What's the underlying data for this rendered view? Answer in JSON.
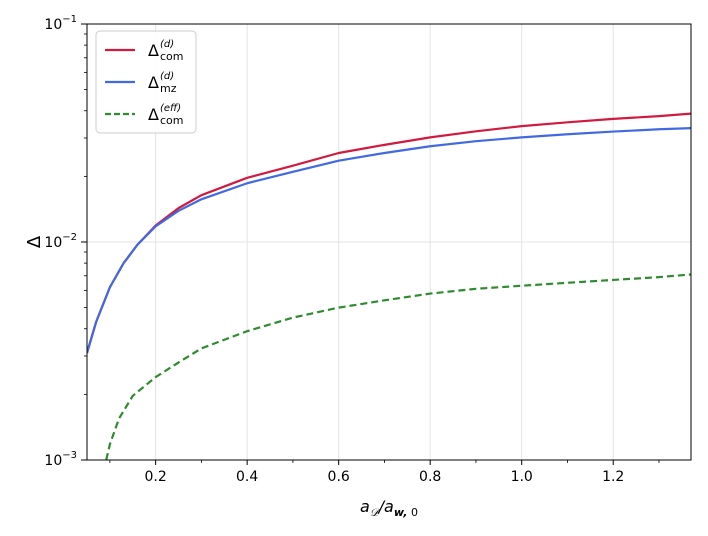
{
  "chart_data": {
    "type": "line",
    "xlabel": "a_D/a_w,0",
    "ylabel": "Δ",
    "xlim": [
      0.05,
      1.37
    ],
    "ylim": [
      0.001,
      0.1
    ],
    "yscale": "log",
    "grid": "vertical-x",
    "legend_position": "top-left",
    "x_ticks": [
      0.2,
      0.4,
      0.6,
      0.8,
      1.0,
      1.2
    ],
    "x_tick_labels": [
      "0.2",
      "0.4",
      "0.6",
      "0.8",
      "1.0",
      "1.2"
    ],
    "y_ticks": [
      0.001,
      0.01,
      0.1
    ],
    "y_tick_labels": [
      {
        "base": "10",
        "exp": "−3"
      },
      {
        "base": "10",
        "exp": "−2"
      },
      {
        "base": "10",
        "exp": "−1"
      }
    ],
    "series": [
      {
        "name": "Δ_com^(d)",
        "legend": {
          "main": "Δ",
          "sup": "(d)",
          "sub": "com"
        },
        "color": "#d11a3f",
        "dash": "solid",
        "x": [
          0.05,
          0.07,
          0.1,
          0.13,
          0.16,
          0.2,
          0.25,
          0.3,
          0.4,
          0.5,
          0.6,
          0.7,
          0.8,
          0.9,
          1.0,
          1.1,
          1.2,
          1.3,
          1.37
        ],
        "y": [
          0.0031,
          0.0043,
          0.0062,
          0.008,
          0.0097,
          0.0119,
          0.0143,
          0.0164,
          0.0197,
          0.0224,
          0.0256,
          0.0279,
          0.0302,
          0.0322,
          0.034,
          0.0354,
          0.0367,
          0.0378,
          0.0388
        ]
      },
      {
        "name": "Δ_mz^(d)",
        "legend": {
          "main": "Δ",
          "sup": "(d)",
          "sub": "mz"
        },
        "color": "#4169e1",
        "dash": "solid",
        "x": [
          0.05,
          0.07,
          0.1,
          0.13,
          0.16,
          0.2,
          0.25,
          0.3,
          0.4,
          0.5,
          0.6,
          0.7,
          0.8,
          0.9,
          1.0,
          1.1,
          1.2,
          1.3,
          1.37
        ],
        "y": [
          0.0031,
          0.0043,
          0.0062,
          0.008,
          0.0097,
          0.0118,
          0.0139,
          0.0157,
          0.0186,
          0.021,
          0.0236,
          0.0256,
          0.0275,
          0.029,
          0.0302,
          0.0312,
          0.0321,
          0.0329,
          0.0333
        ]
      },
      {
        "name": "Δ_com^(eff)",
        "legend": {
          "main": "Δ",
          "sup": "(eff)",
          "sub": "com"
        },
        "color": "#2e8b2e",
        "dash": "dashed",
        "x": [
          0.092,
          0.1,
          0.12,
          0.15,
          0.2,
          0.25,
          0.3,
          0.4,
          0.5,
          0.6,
          0.7,
          0.8,
          0.9,
          1.0,
          1.1,
          1.2,
          1.3,
          1.37
        ],
        "y": [
          0.001,
          0.00118,
          0.00155,
          0.00197,
          0.0024,
          0.0028,
          0.00325,
          0.0039,
          0.0045,
          0.005,
          0.0054,
          0.0058,
          0.0061,
          0.0063,
          0.0065,
          0.0067,
          0.0069,
          0.0071
        ]
      }
    ]
  }
}
